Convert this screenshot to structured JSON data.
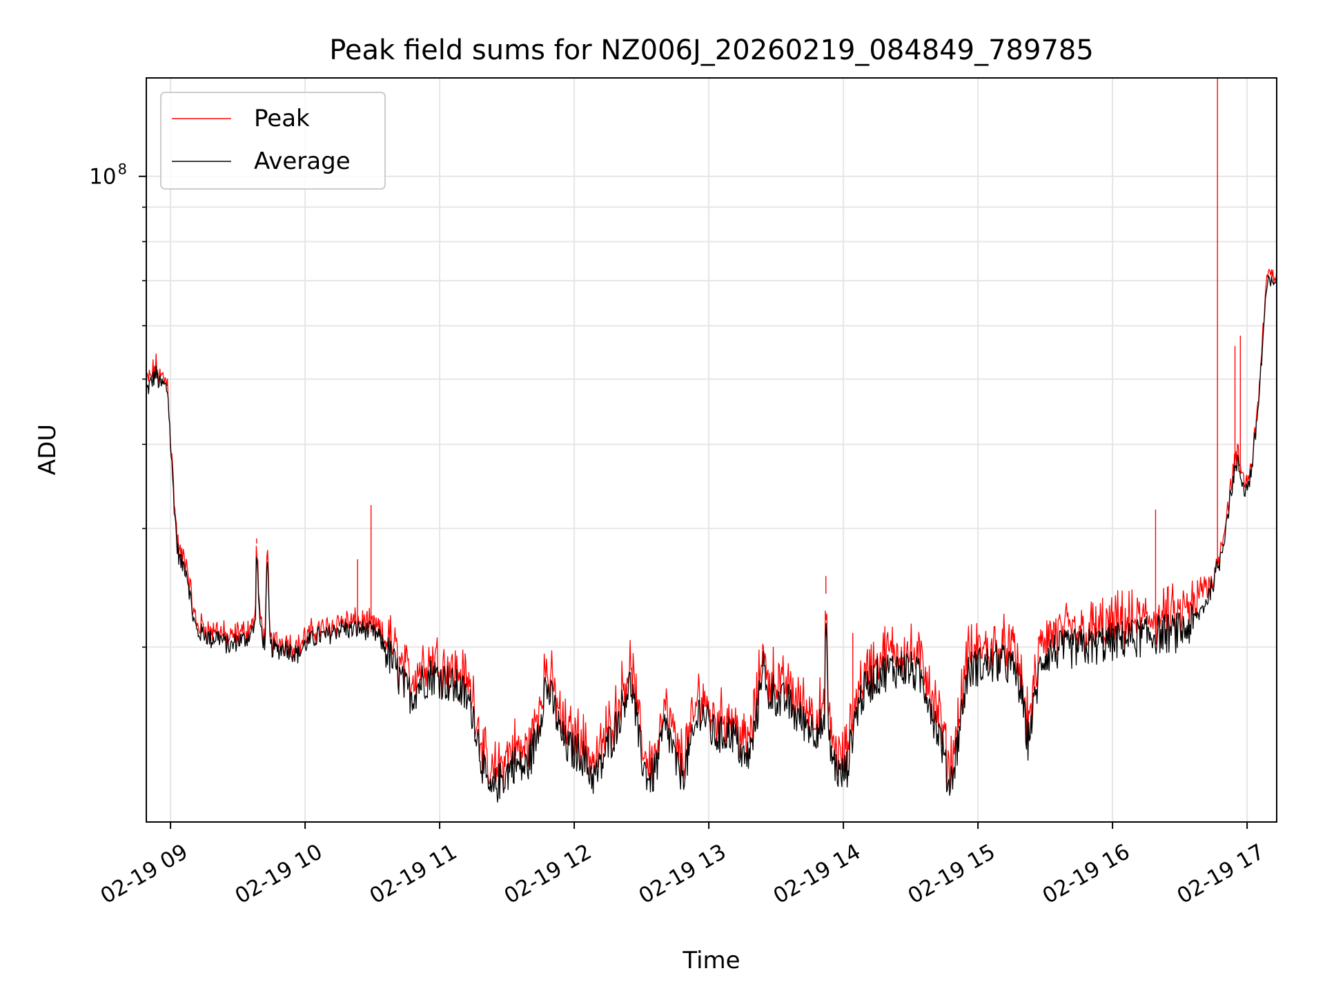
{
  "chart_data": {
    "type": "line",
    "title": "Peak field sums for NZ006J_20260219_084849_789785",
    "xlabel": "Time",
    "ylabel": "ADU",
    "yscale": "log",
    "ylim": [
      11000000,
      140000000
    ],
    "xlim_hours": [
      8.82,
      17.22
    ],
    "x_ticks": [
      {
        "hour": 9,
        "label": "02-19 09"
      },
      {
        "hour": 10,
        "label": "02-19 10"
      },
      {
        "hour": 11,
        "label": "02-19 11"
      },
      {
        "hour": 12,
        "label": "02-19 12"
      },
      {
        "hour": 13,
        "label": "02-19 13"
      },
      {
        "hour": 14,
        "label": "02-19 14"
      },
      {
        "hour": 15,
        "label": "02-19 15"
      },
      {
        "hour": 16,
        "label": "02-19 16"
      },
      {
        "hour": 17,
        "label": "02-19 17"
      }
    ],
    "y_major_ticks": [
      {
        "value": 100000000,
        "base": "10",
        "exp": "8"
      }
    ],
    "y_minor_ticks": [
      20000000,
      30000000,
      40000000,
      50000000,
      60000000,
      70000000,
      80000000,
      90000000
    ],
    "grid": true,
    "legend_position": "upper-left",
    "series": [
      {
        "name": "Peak",
        "color": "#ff0000",
        "spikes": [
          {
            "hour": 9.64,
            "value": 29000000
          },
          {
            "hour": 9.72,
            "value": 27500000
          },
          {
            "hour": 10.39,
            "value": 27000000
          },
          {
            "hour": 10.49,
            "value": 32500000
          },
          {
            "hour": 13.87,
            "value": 25500000
          },
          {
            "hour": 14.07,
            "value": 21000000
          },
          {
            "hour": 16.32,
            "value": 32000000
          },
          {
            "hour": 16.78,
            "value": 140000000
          },
          {
            "hour": 16.91,
            "value": 56000000
          },
          {
            "hour": 16.95,
            "value": 58000000
          }
        ]
      },
      {
        "name": "Average",
        "color": "#000000",
        "points": [
          [
            8.82,
            48000000
          ],
          [
            8.86,
            49500000
          ],
          [
            8.89,
            51000000
          ],
          [
            8.92,
            49000000
          ],
          [
            8.95,
            49000000
          ],
          [
            8.98,
            48000000
          ],
          [
            9.0,
            40000000
          ],
          [
            9.03,
            32000000
          ],
          [
            9.05,
            28000000
          ],
          [
            9.08,
            26500000
          ],
          [
            9.1,
            26500000
          ],
          [
            9.12,
            26000000
          ],
          [
            9.15,
            23500000
          ],
          [
            9.17,
            22000000
          ],
          [
            9.2,
            21000000
          ],
          [
            9.25,
            21000000
          ],
          [
            9.3,
            20500000
          ],
          [
            9.35,
            20800000
          ],
          [
            9.4,
            20300000
          ],
          [
            9.45,
            20000000
          ],
          [
            9.5,
            20500000
          ],
          [
            9.55,
            20500000
          ],
          [
            9.6,
            21000000
          ],
          [
            9.63,
            21500000
          ],
          [
            9.64,
            28500000
          ],
          [
            9.66,
            22000000
          ],
          [
            9.7,
            20000000
          ],
          [
            9.72,
            27000000
          ],
          [
            9.74,
            20000000
          ],
          [
            9.8,
            19800000
          ],
          [
            9.85,
            20000000
          ],
          [
            9.9,
            19700000
          ],
          [
            9.95,
            19500000
          ],
          [
            10.0,
            20200000
          ],
          [
            10.05,
            20500000
          ],
          [
            10.1,
            20800000
          ],
          [
            10.15,
            20700000
          ],
          [
            10.2,
            21000000
          ],
          [
            10.25,
            21300000
          ],
          [
            10.3,
            21300000
          ],
          [
            10.35,
            21200000
          ],
          [
            10.4,
            21300000
          ],
          [
            10.45,
            21200000
          ],
          [
            10.5,
            21000000
          ],
          [
            10.55,
            20700000
          ],
          [
            10.6,
            19800000
          ],
          [
            10.65,
            19000000
          ],
          [
            10.7,
            18000000
          ],
          [
            10.75,
            17300000
          ],
          [
            10.8,
            17000000
          ],
          [
            10.85,
            17700000
          ],
          [
            10.9,
            18000000
          ],
          [
            10.95,
            18200000
          ],
          [
            11.0,
            18000000
          ],
          [
            11.05,
            17800000
          ],
          [
            11.1,
            17500000
          ],
          [
            11.15,
            17300000
          ],
          [
            11.2,
            16800000
          ],
          [
            11.25,
            16000000
          ],
          [
            11.3,
            14000000
          ],
          [
            11.35,
            12500000
          ],
          [
            11.38,
            12000000
          ],
          [
            11.42,
            12500000
          ],
          [
            11.5,
            13000000
          ],
          [
            11.55,
            13500000
          ],
          [
            11.6,
            13200000
          ],
          [
            11.65,
            13300000
          ],
          [
            11.7,
            14200000
          ],
          [
            11.75,
            15800000
          ],
          [
            11.78,
            17500000
          ],
          [
            11.82,
            17000000
          ],
          [
            11.86,
            16000000
          ],
          [
            11.9,
            14800000
          ],
          [
            11.95,
            14200000
          ],
          [
            12.0,
            14000000
          ],
          [
            12.05,
            14000000
          ],
          [
            12.1,
            13200000
          ],
          [
            12.15,
            12800000
          ],
          [
            12.2,
            13300000
          ],
          [
            12.25,
            14300000
          ],
          [
            12.3,
            15000000
          ],
          [
            12.35,
            16200000
          ],
          [
            12.4,
            17500000
          ],
          [
            12.43,
            17500000
          ],
          [
            12.48,
            14500000
          ],
          [
            12.52,
            13200000
          ],
          [
            12.57,
            12700000
          ],
          [
            12.62,
            13500000
          ],
          [
            12.67,
            15200000
          ],
          [
            12.72,
            14500000
          ],
          [
            12.77,
            13000000
          ],
          [
            12.82,
            13200000
          ],
          [
            12.88,
            14500000
          ],
          [
            12.93,
            16200000
          ],
          [
            12.97,
            15800000
          ],
          [
            13.02,
            15000000
          ],
          [
            13.07,
            14700000
          ],
          [
            13.12,
            14900000
          ],
          [
            13.17,
            15000000
          ],
          [
            13.22,
            14300000
          ],
          [
            13.27,
            13500000
          ],
          [
            13.32,
            14200000
          ],
          [
            13.37,
            16500000
          ],
          [
            13.4,
            19500000
          ],
          [
            13.43,
            16800000
          ],
          [
            13.48,
            17200000
          ],
          [
            13.53,
            16500000
          ],
          [
            13.58,
            16700000
          ],
          [
            13.63,
            16000000
          ],
          [
            13.68,
            15600000
          ],
          [
            13.73,
            15400000
          ],
          [
            13.78,
            15100000
          ],
          [
            13.83,
            15300000
          ],
          [
            13.86,
            14800000
          ],
          [
            13.87,
            24000000
          ],
          [
            13.89,
            14500000
          ],
          [
            13.93,
            13500000
          ],
          [
            13.98,
            12800000
          ],
          [
            14.03,
            13300000
          ],
          [
            14.08,
            15500000
          ],
          [
            14.13,
            16800000
          ],
          [
            14.18,
            17500000
          ],
          [
            14.23,
            18000000
          ],
          [
            14.28,
            18300000
          ],
          [
            14.33,
            18500000
          ],
          [
            14.38,
            18600000
          ],
          [
            14.43,
            18700000
          ],
          [
            14.48,
            18600000
          ],
          [
            14.53,
            18300000
          ],
          [
            14.58,
            17900000
          ],
          [
            14.63,
            17000000
          ],
          [
            14.68,
            15500000
          ],
          [
            14.73,
            14500000
          ],
          [
            14.78,
            12500000
          ],
          [
            14.82,
            13200000
          ],
          [
            14.87,
            15500000
          ],
          [
            14.92,
            18200000
          ],
          [
            14.97,
            18700000
          ],
          [
            15.02,
            18800000
          ],
          [
            15.07,
            18800000
          ],
          [
            15.12,
            18900000
          ],
          [
            15.17,
            19000000
          ],
          [
            15.22,
            18800000
          ],
          [
            15.27,
            18500000
          ],
          [
            15.32,
            17200000
          ],
          [
            15.37,
            14500000
          ],
          [
            15.42,
            16500000
          ],
          [
            15.47,
            19200000
          ],
          [
            15.52,
            19600000
          ],
          [
            15.6,
            19800000
          ],
          [
            15.7,
            19900000
          ],
          [
            15.8,
            20000000
          ],
          [
            15.9,
            20200000
          ],
          [
            16.0,
            20400000
          ],
          [
            16.1,
            20600000
          ],
          [
            16.2,
            20700000
          ],
          [
            16.3,
            20900000
          ],
          [
            16.4,
            21000000
          ],
          [
            16.45,
            21000000
          ],
          [
            16.5,
            21100000
          ],
          [
            16.55,
            21300000
          ],
          [
            16.6,
            21800000
          ],
          [
            16.65,
            22500000
          ],
          [
            16.7,
            23500000
          ],
          [
            16.75,
            25000000
          ],
          [
            16.8,
            27000000
          ],
          [
            16.85,
            31000000
          ],
          [
            16.9,
            36000000
          ],
          [
            16.93,
            37500000
          ],
          [
            16.96,
            35500000
          ],
          [
            16.99,
            34000000
          ],
          [
            17.02,
            35500000
          ],
          [
            17.05,
            39000000
          ],
          [
            17.08,
            45000000
          ],
          [
            17.11,
            54000000
          ],
          [
            17.14,
            67000000
          ],
          [
            17.17,
            70000000
          ],
          [
            17.19,
            68000000
          ],
          [
            17.22,
            72000000
          ]
        ]
      }
    ]
  }
}
